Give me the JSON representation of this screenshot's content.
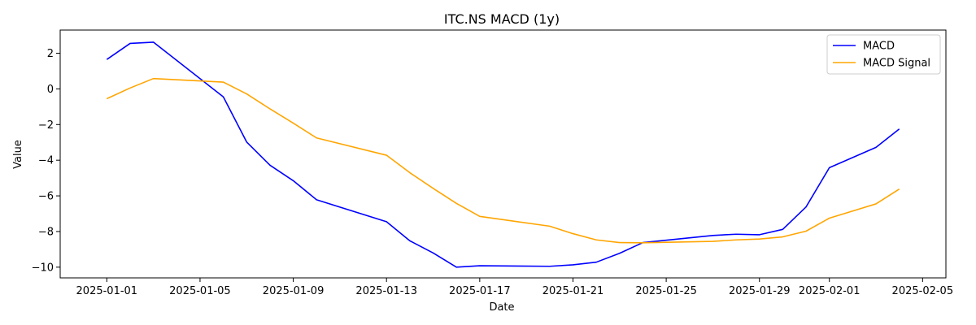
{
  "chart_data": {
    "type": "line",
    "title": "ITC.NS MACD (1y)",
    "xlabel": "Date",
    "ylabel": "Value",
    "x_tick_labels": [
      "2025-01-01",
      "2025-01-05",
      "2025-01-09",
      "2025-01-13",
      "2025-01-17",
      "2025-01-21",
      "2025-01-25",
      "2025-01-29",
      "2025-02-01",
      "2025-02-05"
    ],
    "y_ticks": [
      2,
      0,
      -2,
      -4,
      -6,
      -8,
      -10
    ],
    "y_tick_labels": [
      "2",
      "0",
      "−2",
      "−4",
      "−6",
      "−8",
      "−10"
    ],
    "xlim": [
      "2024-12-30",
      "2025-02-06"
    ],
    "ylim": [
      -10.6,
      3.3
    ],
    "grid": false,
    "legend_position": "upper right",
    "x": [
      "2025-01-01",
      "2025-01-02",
      "2025-01-03",
      "2025-01-06",
      "2025-01-07",
      "2025-01-08",
      "2025-01-09",
      "2025-01-10",
      "2025-01-13",
      "2025-01-14",
      "2025-01-15",
      "2025-01-16",
      "2025-01-17",
      "2025-01-20",
      "2025-01-21",
      "2025-01-22",
      "2025-01-23",
      "2025-01-24",
      "2025-01-27",
      "2025-01-28",
      "2025-01-29",
      "2025-01-30",
      "2025-01-31",
      "2025-02-01",
      "2025-02-03",
      "2025-02-04"
    ],
    "series": [
      {
        "name": "MACD",
        "color": "#0000ff",
        "values": [
          1.65,
          2.55,
          2.62,
          -0.45,
          -2.98,
          -4.28,
          -5.15,
          -6.22,
          -7.45,
          -8.52,
          -9.2,
          -10.0,
          -9.92,
          -9.95,
          -9.87,
          -9.72,
          -9.22,
          -8.62,
          -8.22,
          -8.15,
          -8.18,
          -7.88,
          -6.62,
          -4.42,
          -3.28,
          -2.25
        ]
      },
      {
        "name": "MACD Signal",
        "color": "#ffa500",
        "values": [
          -0.55,
          0.05,
          0.58,
          0.38,
          -0.28,
          -1.12,
          -1.92,
          -2.75,
          -3.72,
          -4.7,
          -5.58,
          -6.42,
          -7.15,
          -7.7,
          -8.12,
          -8.47,
          -8.62,
          -8.63,
          -8.55,
          -8.47,
          -8.42,
          -8.3,
          -7.98,
          -7.25,
          -6.45,
          -5.62
        ]
      }
    ]
  }
}
